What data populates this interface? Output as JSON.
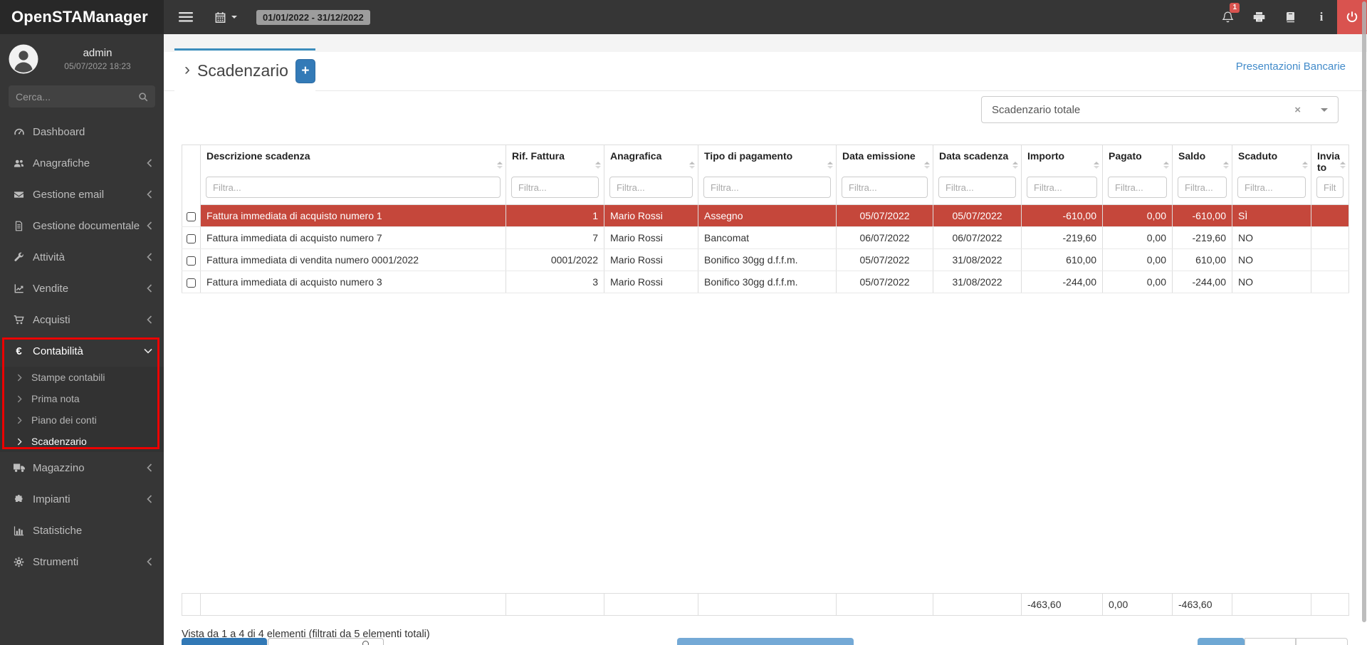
{
  "app": {
    "title": "OpenSTAManager"
  },
  "topbar": {
    "date_range": "01/01/2022 - 31/12/2022",
    "notifications_badge": "1"
  },
  "sidebar": {
    "user": {
      "name": "admin",
      "datetime": "05/07/2022 18:23"
    },
    "search_placeholder": "Cerca...",
    "items": [
      {
        "label": "Dashboard",
        "icon": "dashboard"
      },
      {
        "label": "Anagrafiche",
        "icon": "users",
        "chevron": "left"
      },
      {
        "label": "Gestione email",
        "icon": "envelope",
        "chevron": "left"
      },
      {
        "label": "Gestione documentale",
        "icon": "document",
        "chevron": "left"
      },
      {
        "label": "Attività",
        "icon": "wrench",
        "chevron": "left"
      },
      {
        "label": "Vendite",
        "icon": "chart-line",
        "chevron": "left"
      },
      {
        "label": "Acquisti",
        "icon": "cart",
        "chevron": "left"
      },
      {
        "label": "Contabilità",
        "icon": "euro",
        "chevron": "down",
        "active": true,
        "children": [
          {
            "label": "Stampe contabili"
          },
          {
            "label": "Prima nota"
          },
          {
            "label": "Piano dei conti"
          },
          {
            "label": "Scadenzario",
            "active": true
          }
        ]
      },
      {
        "label": "Magazzino",
        "icon": "truck",
        "chevron": "left"
      },
      {
        "label": "Impianti",
        "icon": "puzzle",
        "chevron": "left"
      },
      {
        "label": "Statistiche",
        "icon": "stats"
      },
      {
        "label": "Strumenti",
        "icon": "gear",
        "chevron": "left"
      }
    ]
  },
  "main": {
    "tab_title": "Scadenzario",
    "tab_caret": "›",
    "add_button": "+",
    "top_link": "Presentazioni Bancarie",
    "filter_select_value": "Scadenzario totale",
    "filter_select_clear": "×",
    "table": {
      "columns": [
        {
          "key": "descrizione",
          "label": "Descrizione scadenza",
          "filter_placeholder": "Filtra...",
          "align": "left"
        },
        {
          "key": "rif",
          "label": "Rif. Fattura",
          "filter_placeholder": "Filtra...",
          "align": "right"
        },
        {
          "key": "anagrafica",
          "label": "Anagrafica",
          "filter_placeholder": "Filtra...",
          "align": "left"
        },
        {
          "key": "pagamento",
          "label": "Tipo di pagamento",
          "filter_placeholder": "Filtra...",
          "align": "left"
        },
        {
          "key": "emissione",
          "label": "Data emissione",
          "filter_placeholder": "Filtra...",
          "align": "center"
        },
        {
          "key": "scadenza",
          "label": "Data scadenza",
          "filter_placeholder": "Filtra...",
          "align": "center"
        },
        {
          "key": "importo",
          "label": "Importo",
          "filter_placeholder": "Filtra...",
          "align": "right"
        },
        {
          "key": "pagato",
          "label": "Pagato",
          "filter_placeholder": "Filtra...",
          "align": "right"
        },
        {
          "key": "saldo",
          "label": "Saldo",
          "filter_placeholder": "Filtra...",
          "align": "right"
        },
        {
          "key": "scaduto",
          "label": "Scaduto",
          "filter_placeholder": "Filtra...",
          "align": "left"
        },
        {
          "key": "inviato",
          "label": "Inviato",
          "filter_placeholder": "Filtra...",
          "align": "left"
        }
      ],
      "rows": [
        {
          "highlighted": true,
          "descrizione": "Fattura immediata di acquisto numero 1",
          "rif": "1",
          "anagrafica": "Mario Rossi",
          "pagamento": "Assegno",
          "emissione": "05/07/2022",
          "scadenza": "05/07/2022",
          "importo": "-610,00",
          "pagato": "0,00",
          "saldo": "-610,00",
          "scaduto": "SÌ",
          "inviato": ""
        },
        {
          "highlighted": false,
          "descrizione": "Fattura immediata di acquisto numero 7",
          "rif": "7",
          "anagrafica": "Mario Rossi",
          "pagamento": "Bancomat",
          "emissione": "06/07/2022",
          "scadenza": "06/07/2022",
          "importo": "-219,60",
          "pagato": "0,00",
          "saldo": "-219,60",
          "scaduto": "NO",
          "inviato": ""
        },
        {
          "highlighted": false,
          "descrizione": "Fattura immediata di vendita numero 0001/2022",
          "rif": "0001/2022",
          "anagrafica": "Mario Rossi",
          "pagamento": "Bonifico 30gg d.f.f.m.",
          "emissione": "05/07/2022",
          "scadenza": "31/08/2022",
          "importo": "610,00",
          "pagato": "0,00",
          "saldo": "610,00",
          "scaduto": "NO",
          "inviato": ""
        },
        {
          "highlighted": false,
          "descrizione": "Fattura immediata di acquisto numero 3",
          "rif": "3",
          "anagrafica": "Mario Rossi",
          "pagamento": "Bonifico 30gg d.f.f.m.",
          "emissione": "05/07/2022",
          "scadenza": "31/08/2022",
          "importo": "-244,00",
          "pagato": "0,00",
          "saldo": "-244,00",
          "scaduto": "NO",
          "inviato": ""
        }
      ],
      "totals": {
        "importo": "-463,60",
        "pagato": "0,00",
        "saldo": "-463,60"
      },
      "summary": "Vista da 1 a 4 di 4 elementi (filtrati da 5 elementi totali)"
    }
  },
  "colors": {
    "primary_blue": "#337ab7",
    "link_blue": "#428bca",
    "tab_accent": "#3c8dbc",
    "row_danger": "#c5473b",
    "power_red": "#d9534f",
    "annotation_red": "#ec0000"
  }
}
